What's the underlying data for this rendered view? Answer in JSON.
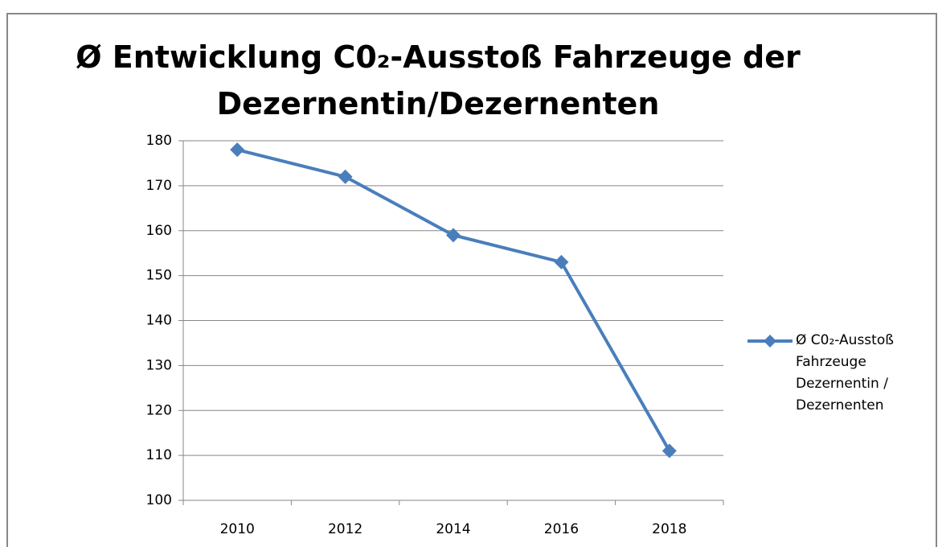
{
  "chart_data": {
    "type": "line",
    "title": "Ø Entwicklung C0₂-Ausstoß Fahrzeuge der Dezernentin/Dezernenten",
    "categories": [
      "2010",
      "2012",
      "2014",
      "2016",
      "2018"
    ],
    "series": [
      {
        "name": "Ø C0₂-Ausstoß Fahrzeuge Dezernentin / Dezernenten",
        "color": "#4a7ebb",
        "values": [
          178,
          172,
          159,
          153,
          111
        ]
      }
    ],
    "ylim": [
      100,
      180
    ],
    "yticks": [
      100,
      110,
      120,
      130,
      140,
      150,
      160,
      170,
      180
    ],
    "grid": true,
    "legend": "right"
  }
}
